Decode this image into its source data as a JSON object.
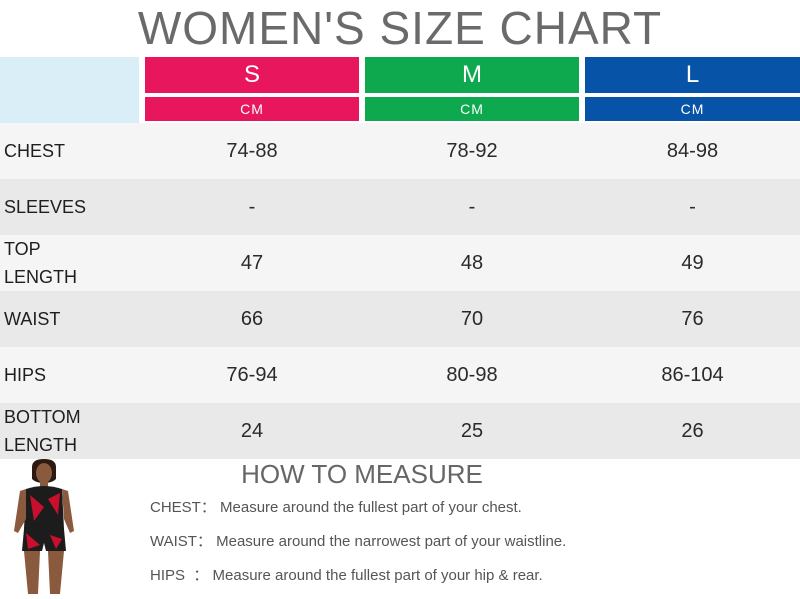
{
  "title": "WOMEN'S SIZE CHART",
  "sizes": [
    {
      "label": "S",
      "unit": "CM",
      "color": "#e8175d"
    },
    {
      "label": "M",
      "unit": "CM",
      "color": "#0ea84f"
    },
    {
      "label": "L",
      "unit": "CM",
      "color": "#0753a7"
    }
  ],
  "rows": [
    {
      "label_lines": [
        "CHEST"
      ],
      "values": [
        "74-88",
        "78-92",
        "84-98"
      ]
    },
    {
      "label_lines": [
        "SLEEVES"
      ],
      "values": [
        "-",
        "-",
        "-"
      ]
    },
    {
      "label_lines": [
        "TOP",
        "LENGTH"
      ],
      "values": [
        "47",
        "48",
        "49"
      ]
    },
    {
      "label_lines": [
        "WAIST"
      ],
      "values": [
        "66",
        "70",
        "76"
      ]
    },
    {
      "label_lines": [
        "HIPS"
      ],
      "values": [
        "76-94",
        "80-98",
        "86-104"
      ]
    },
    {
      "label_lines": [
        "BOTTOM",
        "LENGTH"
      ],
      "values": [
        "24",
        "25",
        "26"
      ]
    }
  ],
  "how_to_measure": {
    "title": "HOW TO MEASURE",
    "items": [
      {
        "label": "CHEST：",
        "text": "Measure around the fullest part of your chest."
      },
      {
        "label": "WAIST：",
        "text": "Measure around the narrowest part of your waistline."
      },
      {
        "label": "HIPS  ：",
        "text": "Measure around the fullest part of your hip & rear."
      }
    ]
  },
  "model_image": {
    "icon": "model-photo-icon",
    "outfit_colors": [
      "#1c1c1c",
      "#c8102e"
    ]
  }
}
